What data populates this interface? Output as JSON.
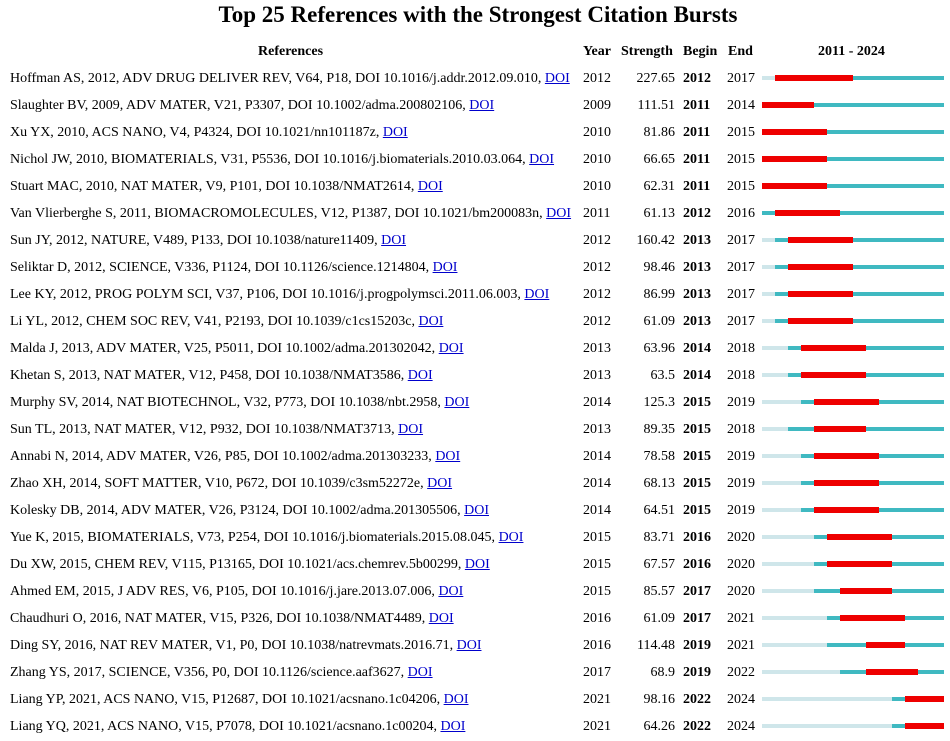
{
  "title": "Top 25 References with the Strongest Citation Bursts",
  "columns": {
    "references": "References",
    "year": "Year",
    "strength": "Strength",
    "begin": "Begin",
    "end": "End",
    "timeline": "2011 - 2024"
  },
  "colors": {
    "burst": "#ee0000",
    "active": "#3fb9c1",
    "inactive": "#cfe6ea",
    "link": "#0000cc"
  },
  "chart_data": {
    "type": "table",
    "timeline_start": 2011,
    "timeline_end": 2024,
    "rows": [
      {
        "ref": "Hoffman AS, 2012, ADV DRUG DELIVER REV, V64, P18, DOI 10.1016/j.addr.2012.09.010,",
        "link": "DOI",
        "year": "2012",
        "strength": "227.65",
        "begin": "2012",
        "end": "2017"
      },
      {
        "ref": "Slaughter BV, 2009, ADV MATER, V21, P3307, DOI 10.1002/adma.200802106,",
        "link": "DOI",
        "year": "2009",
        "strength": "111.51",
        "begin": "2011",
        "end": "2014"
      },
      {
        "ref": "Xu YX, 2010, ACS NANO, V4, P4324, DOI 10.1021/nn101187z,",
        "link": "DOI",
        "year": "2010",
        "strength": "81.86",
        "begin": "2011",
        "end": "2015"
      },
      {
        "ref": "Nichol JW, 2010, BIOMATERIALS, V31, P5536, DOI 10.1016/j.biomaterials.2010.03.064,",
        "link": "DOI",
        "year": "2010",
        "strength": "66.65",
        "begin": "2011",
        "end": "2015"
      },
      {
        "ref": "Stuart MAC, 2010, NAT MATER, V9, P101, DOI 10.1038/NMAT2614,",
        "link": "DOI",
        "year": "2010",
        "strength": "62.31",
        "begin": "2011",
        "end": "2015"
      },
      {
        "ref": "Van Vlierberghe S, 2011, BIOMACROMOLECULES, V12, P1387, DOI 10.1021/bm200083n,",
        "link": "DOI",
        "year": "2011",
        "strength": "61.13",
        "begin": "2012",
        "end": "2016"
      },
      {
        "ref": "Sun JY, 2012, NATURE, V489, P133, DOI 10.1038/nature11409,",
        "link": "DOI",
        "year": "2012",
        "strength": "160.42",
        "begin": "2013",
        "end": "2017"
      },
      {
        "ref": "Seliktar D, 2012, SCIENCE, V336, P1124, DOI 10.1126/science.1214804,",
        "link": "DOI",
        "year": "2012",
        "strength": "98.46",
        "begin": "2013",
        "end": "2017"
      },
      {
        "ref": "Lee KY, 2012, PROG POLYM SCI, V37, P106, DOI 10.1016/j.progpolymsci.2011.06.003,",
        "link": "DOI",
        "year": "2012",
        "strength": "86.99",
        "begin": "2013",
        "end": "2017"
      },
      {
        "ref": "Li YL, 2012, CHEM SOC REV, V41, P2193, DOI 10.1039/c1cs15203c,",
        "link": "DOI",
        "year": "2012",
        "strength": "61.09",
        "begin": "2013",
        "end": "2017"
      },
      {
        "ref": "Malda J, 2013, ADV MATER, V25, P5011, DOI 10.1002/adma.201302042,",
        "link": "DOI",
        "year": "2013",
        "strength": "63.96",
        "begin": "2014",
        "end": "2018"
      },
      {
        "ref": "Khetan S, 2013, NAT MATER, V12, P458, DOI 10.1038/NMAT3586,",
        "link": "DOI",
        "year": "2013",
        "strength": "63.5",
        "begin": "2014",
        "end": "2018"
      },
      {
        "ref": "Murphy SV, 2014, NAT BIOTECHNOL, V32, P773, DOI 10.1038/nbt.2958,",
        "link": "DOI",
        "year": "2014",
        "strength": "125.3",
        "begin": "2015",
        "end": "2019"
      },
      {
        "ref": "Sun TL, 2013, NAT MATER, V12, P932, DOI 10.1038/NMAT3713,",
        "link": "DOI",
        "year": "2013",
        "strength": "89.35",
        "begin": "2015",
        "end": "2018"
      },
      {
        "ref": "Annabi N, 2014, ADV MATER, V26, P85, DOI 10.1002/adma.201303233,",
        "link": "DOI",
        "year": "2014",
        "strength": "78.58",
        "begin": "2015",
        "end": "2019"
      },
      {
        "ref": "Zhao XH, 2014, SOFT MATTER, V10, P672, DOI 10.1039/c3sm52272e,",
        "link": "DOI",
        "year": "2014",
        "strength": "68.13",
        "begin": "2015",
        "end": "2019"
      },
      {
        "ref": "Kolesky DB, 2014, ADV MATER, V26, P3124, DOI 10.1002/adma.201305506,",
        "link": "DOI",
        "year": "2014",
        "strength": "64.51",
        "begin": "2015",
        "end": "2019"
      },
      {
        "ref": "Yue K, 2015, BIOMATERIALS, V73, P254, DOI 10.1016/j.biomaterials.2015.08.045,",
        "link": "DOI",
        "year": "2015",
        "strength": "83.71",
        "begin": "2016",
        "end": "2020"
      },
      {
        "ref": "Du XW, 2015, CHEM REV, V115, P13165, DOI 10.1021/acs.chemrev.5b00299,",
        "link": "DOI",
        "year": "2015",
        "strength": "67.57",
        "begin": "2016",
        "end": "2020"
      },
      {
        "ref": "Ahmed EM, 2015, J ADV RES, V6, P105, DOI 10.1016/j.jare.2013.07.006,",
        "link": "DOI",
        "year": "2015",
        "strength": "85.57",
        "begin": "2017",
        "end": "2020"
      },
      {
        "ref": "Chaudhuri O, 2016, NAT MATER, V15, P326, DOI 10.1038/NMAT4489,",
        "link": "DOI",
        "year": "2016",
        "strength": "61.09",
        "begin": "2017",
        "end": "2021"
      },
      {
        "ref": "Ding SY, 2016, NAT REV MATER, V1, P0, DOI 10.1038/natrevmats.2016.71,",
        "link": "DOI",
        "year": "2016",
        "strength": "114.48",
        "begin": "2019",
        "end": "2021"
      },
      {
        "ref": "Zhang YS, 2017, SCIENCE, V356, P0, DOI 10.1126/science.aaf3627,",
        "link": "DOI",
        "year": "2017",
        "strength": "68.9",
        "begin": "2019",
        "end": "2022"
      },
      {
        "ref": "Liang YP, 2021, ACS NANO, V15, P12687, DOI 10.1021/acsnano.1c04206,",
        "link": "DOI",
        "year": "2021",
        "strength": "98.16",
        "begin": "2022",
        "end": "2024"
      },
      {
        "ref": "Liang YQ, 2021, ACS NANO, V15, P7078, DOI 10.1021/acsnano.1c00204,",
        "link": "DOI",
        "year": "2021",
        "strength": "64.26",
        "begin": "2022",
        "end": "2024"
      }
    ]
  }
}
